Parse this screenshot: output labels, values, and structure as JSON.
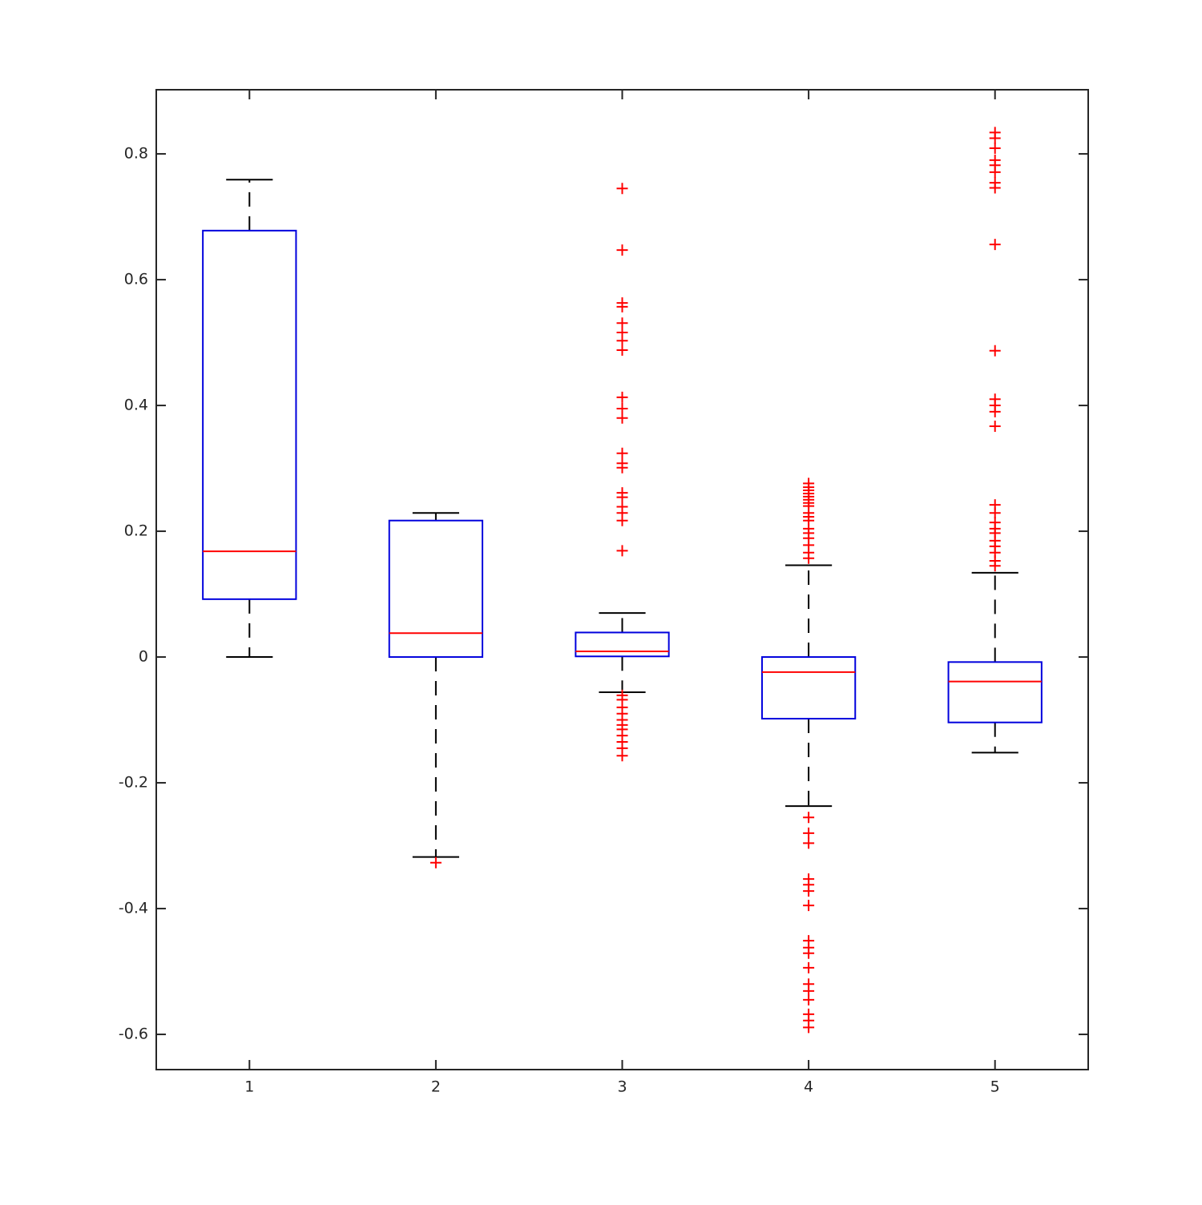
{
  "chart_data": {
    "type": "box",
    "categories": [
      "1",
      "2",
      "3",
      "4",
      "5"
    ],
    "xlim": [
      0.5,
      5.5
    ],
    "ylim": [
      -0.656,
      0.902
    ],
    "yticks": [
      -0.6,
      -0.4,
      -0.2,
      0,
      0.2,
      0.4,
      0.6,
      0.8
    ],
    "box_color": "#0000dd",
    "median_color": "#ff0000",
    "whisker_color": "#000000",
    "outlier_color": "#ff0000",
    "boxes": [
      {
        "whisker_low": 0,
        "q1": 0.092,
        "median": 0.168,
        "q3": 0.678,
        "whisker_high": 0.759,
        "outliers": []
      },
      {
        "whisker_low": -0.318,
        "q1": 0,
        "median": 0.038,
        "q3": 0.217,
        "whisker_high": 0.229,
        "outliers": [
          -0.327
        ]
      },
      {
        "whisker_low": -0.056,
        "q1": 0.001,
        "median": 0.009,
        "q3": 0.039,
        "whisker_high": 0.07,
        "outliers": [
          0.745,
          0.647,
          0.563,
          0.557,
          0.531,
          0.516,
          0.503,
          0.488,
          0.413,
          0.395,
          0.38,
          0.324,
          0.308,
          0.301,
          0.261,
          0.254,
          0.239,
          0.229,
          0.217,
          0.169,
          -0.061,
          -0.068,
          -0.08,
          -0.09,
          -0.1,
          -0.108,
          -0.115,
          -0.125,
          -0.135,
          -0.145,
          -0.157
        ]
      },
      {
        "whisker_low": -0.237,
        "q1": -0.098,
        "median": -0.024,
        "q3": 0,
        "whisker_high": 0.146,
        "outliers": [
          0.276,
          0.27,
          0.265,
          0.26,
          0.255,
          0.25,
          0.245,
          0.24,
          0.229,
          0.223,
          0.217,
          0.204,
          0.197,
          0.189,
          0.178,
          0.166,
          0.157,
          -0.255,
          -0.28,
          -0.296,
          -0.353,
          -0.362,
          -0.372,
          -0.395,
          -0.451,
          -0.462,
          -0.471,
          -0.494,
          -0.52,
          -0.531,
          -0.545,
          -0.568,
          -0.578,
          -0.589
        ]
      },
      {
        "whisker_low": -0.152,
        "q1": -0.104,
        "median": -0.039,
        "q3": -0.008,
        "whisker_high": 0.134,
        "outliers": [
          0.834,
          0.825,
          0.809,
          0.79,
          0.782,
          0.771,
          0.754,
          0.746,
          0.656,
          0.487,
          0.41,
          0.4,
          0.39,
          0.367,
          0.242,
          0.229,
          0.214,
          0.204,
          0.197,
          0.185,
          0.176,
          0.166,
          0.153,
          0.145
        ]
      }
    ]
  }
}
